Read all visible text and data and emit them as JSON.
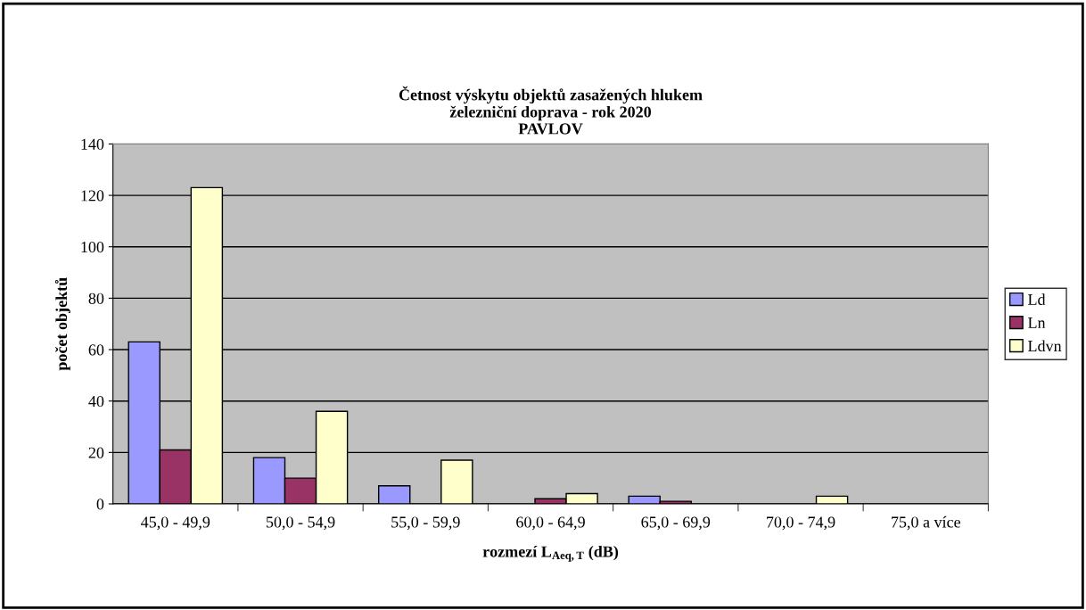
{
  "chart_data": {
    "type": "bar",
    "title": "Četnost výskytu objektů zasažených hlukem\nželezniční doprava - rok 2020\nPAVLOV",
    "xlabel": "rozmezí L$_{Aeq,T}$ (dB)",
    "ylabel": "počet objektů",
    "categories": [
      "45,0 - 49,9",
      "50,0 - 54,9",
      "55,0 - 59,9",
      "60,0 - 64,9",
      "65,0 - 69,9",
      "70,0 - 74,9",
      "75,0 a více"
    ],
    "series": [
      {
        "name": "Ld",
        "color": "#9999ff",
        "values": [
          63,
          18,
          7,
          null,
          3,
          null,
          null
        ]
      },
      {
        "name": "Ln",
        "color": "#993366",
        "values": [
          21,
          10,
          null,
          2,
          1,
          null,
          null
        ]
      },
      {
        "name": "Ldvn",
        "color": "#ffffcc",
        "values": [
          123,
          36,
          17,
          4,
          null,
          3,
          null
        ]
      }
    ],
    "ylim": [
      0,
      140
    ],
    "yticks": [
      0,
      20,
      40,
      60,
      80,
      100,
      120,
      140
    ],
    "grid": "y",
    "legend": "right"
  }
}
